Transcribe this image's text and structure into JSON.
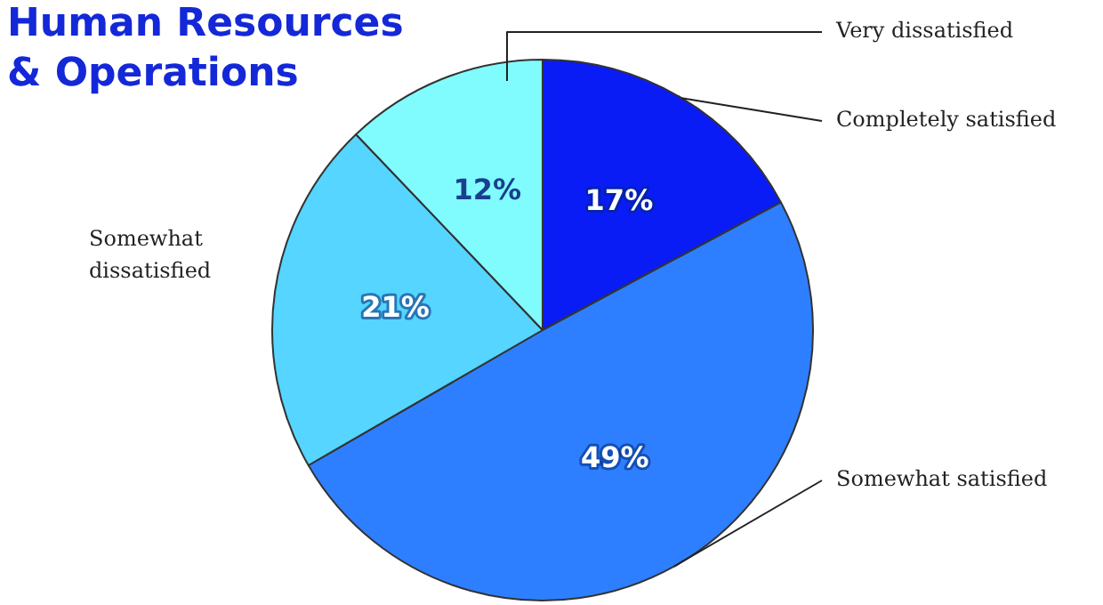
{
  "chart_data": {
    "type": "pie",
    "title": "Human Resources\n& Operations",
    "categories": [
      "Completely satisfied",
      "Somewhat satisfied",
      "Somewhat dissatisfied",
      "Very dissatisfied"
    ],
    "values": [
      17,
      49,
      21,
      12
    ],
    "colors": [
      "#0a1cf5",
      "#2e7fff",
      "#55d5ff",
      "#80fcff"
    ],
    "value_labels": [
      "17%",
      "49%",
      "21%",
      "12%"
    ],
    "legend": false
  }
}
